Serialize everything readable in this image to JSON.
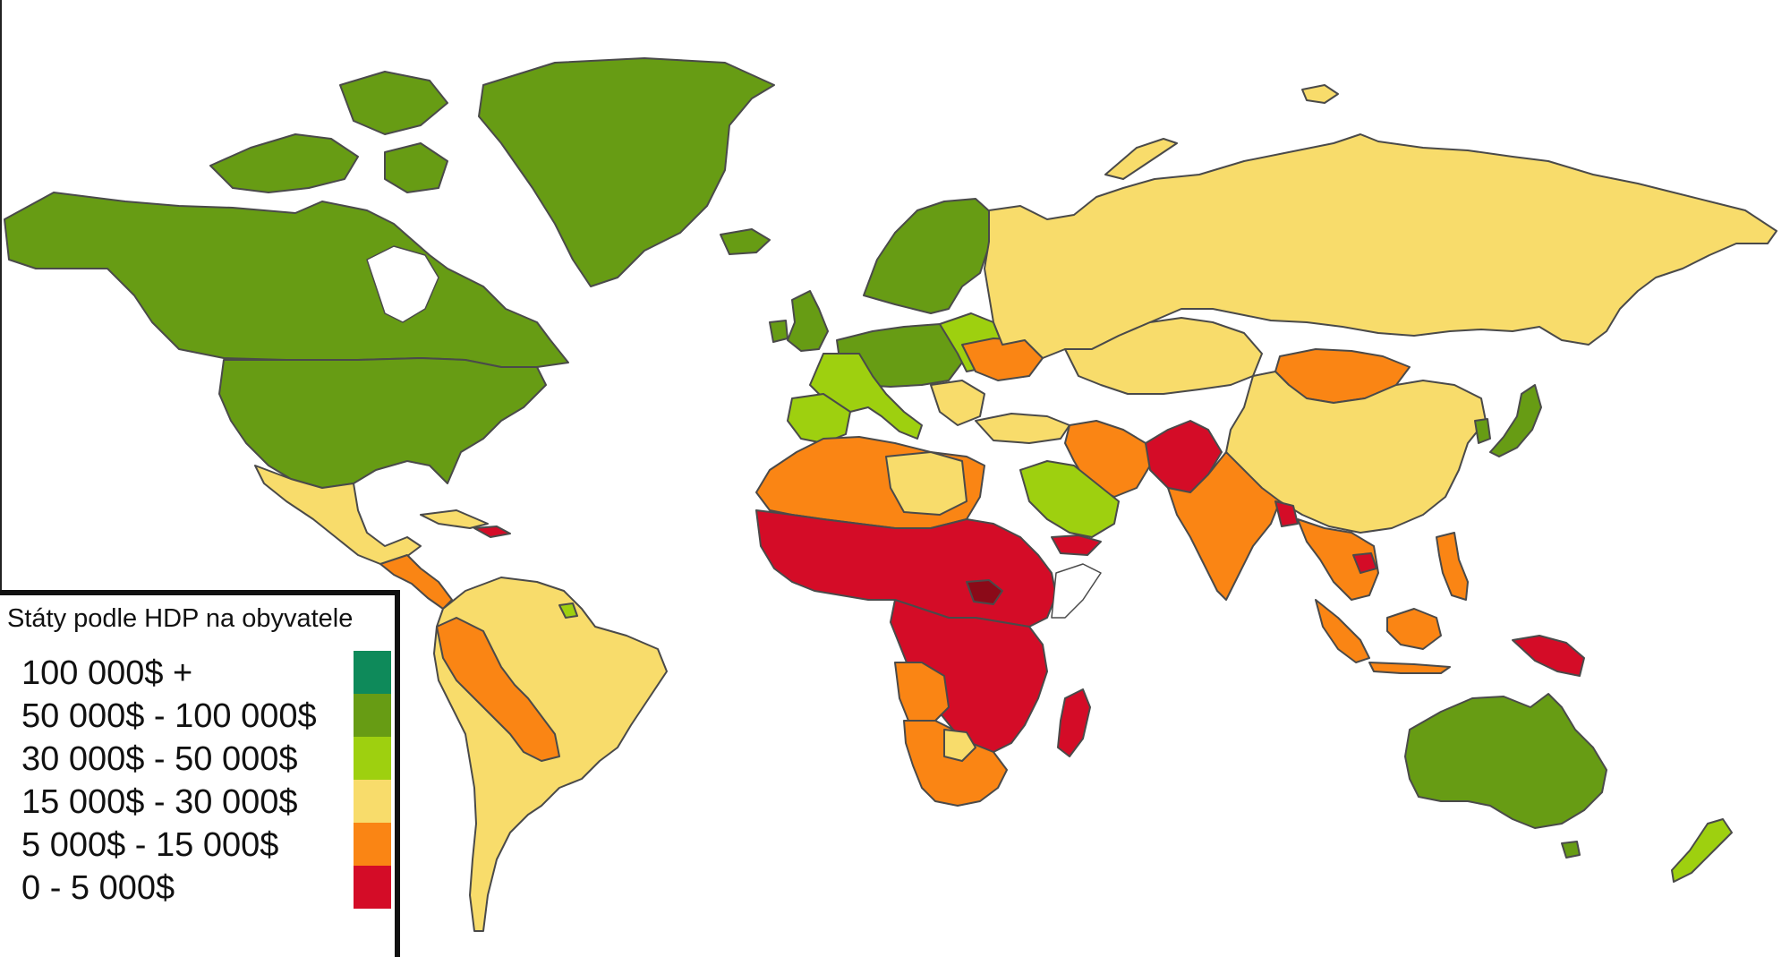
{
  "legend": {
    "title": "Státy podle HDP na obyvatele",
    "items": [
      {
        "label": "100 000$ +",
        "color": "#0e8a5a"
      },
      {
        "label": "50 000$ - 100 000$",
        "color": "#679c14"
      },
      {
        "label": "30 000$ - 50 000$",
        "color": "#9ed00f"
      },
      {
        "label": "15 000$ - 30 000$",
        "color": "#f8dc6b"
      },
      {
        "label": "5 000$ - 15 000$",
        "color": "#fa8514"
      },
      {
        "label": "0 - 5 000$",
        "color": "#d40c27"
      }
    ]
  },
  "colors": {
    "border": "#4a4a4a",
    "background": "#ffffff",
    "dark_red": "#8b0a18"
  }
}
